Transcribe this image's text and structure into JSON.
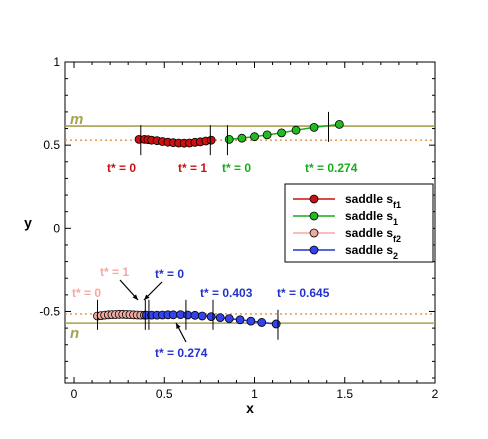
{
  "chart_data": {
    "type": "scatter",
    "xlabel": "x",
    "ylabel": "y",
    "xlim": [
      -0.05,
      2
    ],
    "ylim": [
      -0.93,
      1
    ],
    "x_ticks": [
      0,
      0.5,
      1,
      1.5,
      2
    ],
    "x_tick_labels": [
      "0",
      "0.5",
      "1",
      "1.5",
      "2"
    ],
    "y_ticks": [
      -0.5,
      0,
      0.5,
      1
    ],
    "y_tick_labels": [
      "-0.5",
      "0",
      "0.5",
      "1"
    ],
    "grid": false,
    "legend_position": "right",
    "reference_lines": [
      {
        "label": "m",
        "y": 0.615,
        "style": "solid",
        "color": "#a8a050"
      },
      {
        "label": "",
        "y": 0.53,
        "style": "dotted",
        "color": "#e2904a"
      },
      {
        "label": "",
        "y": -0.515,
        "style": "dotted",
        "color": "#e2904a"
      },
      {
        "label": "n",
        "y": -0.57,
        "style": "solid",
        "color": "#a8a050"
      }
    ],
    "series": [
      {
        "name": "saddle s",
        "subscript": "f1",
        "color": "#cc1010",
        "fill": "#cc1010",
        "x": [
          0.36,
          0.39,
          0.41,
          0.43,
          0.46,
          0.49,
          0.52,
          0.55,
          0.58,
          0.61,
          0.64,
          0.67,
          0.7,
          0.73,
          0.76
        ],
        "y": [
          0.535,
          0.535,
          0.533,
          0.53,
          0.527,
          0.522,
          0.518,
          0.515,
          0.513,
          0.512,
          0.513,
          0.517,
          0.52,
          0.525,
          0.53
        ]
      },
      {
        "name": "saddle s",
        "subscript": "1",
        "color": "#1aab1a",
        "fill": "#22bb22",
        "x": [
          0.86,
          0.93,
          1.0,
          1.07,
          1.15,
          1.23,
          1.33,
          1.47
        ],
        "y": [
          0.535,
          0.542,
          0.551,
          0.562,
          0.574,
          0.59,
          0.607,
          0.625
        ]
      },
      {
        "name": "saddle s",
        "subscript": "f2",
        "color": "#f5a8a0",
        "fill": "#f0a8a0",
        "x": [
          0.13,
          0.15,
          0.17,
          0.19,
          0.21,
          0.23,
          0.25,
          0.27,
          0.29,
          0.31,
          0.33,
          0.35,
          0.37,
          0.39
        ],
        "y": [
          -0.527,
          -0.525,
          -0.522,
          -0.52,
          -0.519,
          -0.518,
          -0.517,
          -0.517,
          -0.518,
          -0.519,
          -0.52,
          -0.521,
          -0.522,
          -0.522
        ]
      },
      {
        "name": "saddle s",
        "subscript": "2",
        "color": "#2233cc",
        "fill": "#3344ee",
        "x": [
          0.4,
          0.43,
          0.46,
          0.49,
          0.52,
          0.55,
          0.59,
          0.63,
          0.67,
          0.71,
          0.76,
          0.81,
          0.86,
          0.92,
          0.98,
          1.04,
          1.12
        ],
        "y": [
          -0.522,
          -0.522,
          -0.522,
          -0.521,
          -0.52,
          -0.52,
          -0.519,
          -0.521,
          -0.523,
          -0.527,
          -0.531,
          -0.537,
          -0.543,
          -0.55,
          -0.558,
          -0.566,
          -0.575
        ]
      }
    ],
    "annotations": [
      {
        "text": "m",
        "x": 0.0,
        "y": 0.66,
        "color": "#a8a050"
      },
      {
        "text": "n",
        "x": 0.0,
        "y": -0.62,
        "color": "#a8a050"
      },
      {
        "text": "t* = 0",
        "x": 0.37,
        "y": 0.53,
        "color": "#cc1010"
      },
      {
        "text": "t* = 1",
        "x": 0.75,
        "y": 0.53,
        "color": "#cc1010"
      },
      {
        "text": "t* = 0",
        "x": 0.85,
        "y": 0.53,
        "color": "#1aab1a"
      },
      {
        "text": "t* = 0.274",
        "x": 1.41,
        "y": 0.61,
        "color": "#1aab1a"
      },
      {
        "text": "t* = 1",
        "x": 0.37,
        "y": -0.52,
        "color": "#f5a8a0"
      },
      {
        "text": "t* = 0",
        "x": 0.13,
        "y": -0.52,
        "color": "#f5a8a0"
      },
      {
        "text": "t* = 0",
        "x": 0.4,
        "y": -0.52,
        "color": "#2233cc"
      },
      {
        "text": "t* = 0.403",
        "x": 0.77,
        "y": -0.52,
        "color": "#2233cc"
      },
      {
        "text": "t* = 0.645",
        "x": 1.13,
        "y": -0.58,
        "color": "#2233cc"
      },
      {
        "text": "t* = 0.274",
        "x": 0.62,
        "y": -0.52,
        "color": "#2233cc"
      }
    ]
  }
}
